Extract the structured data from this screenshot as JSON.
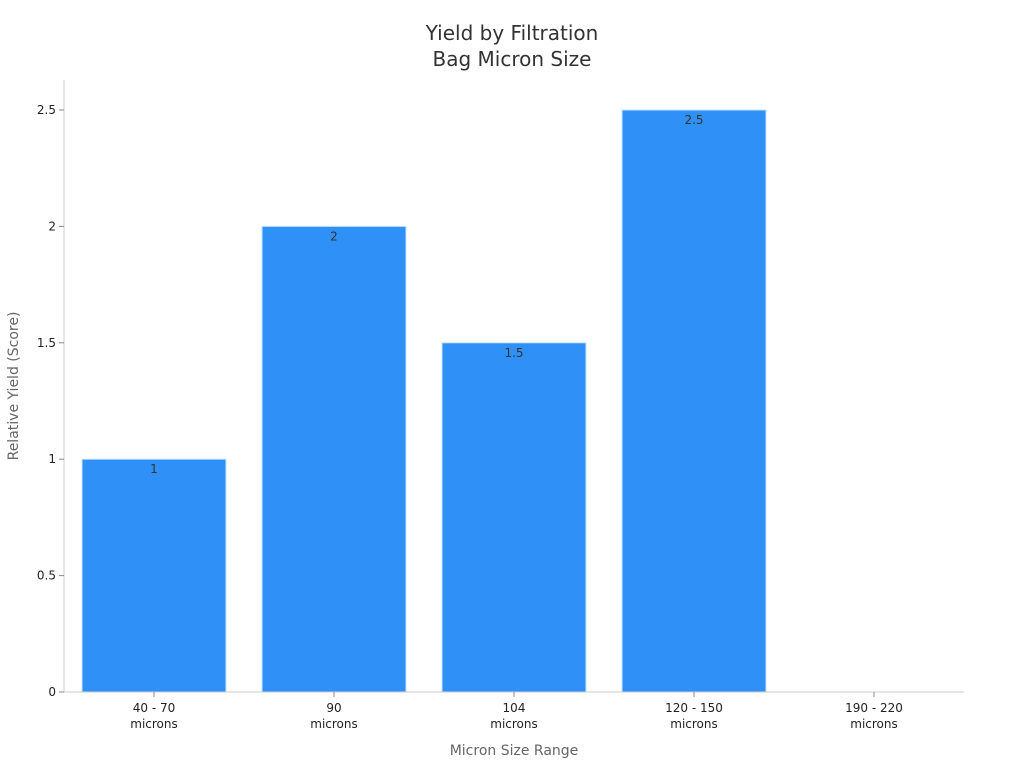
{
  "chart_data": {
    "type": "bar",
    "title_lines": [
      "Yield by Filtration",
      "Bag Micron Size"
    ],
    "xlabel": "Micron Size Range",
    "ylabel": "Relative Yield (Score)",
    "categories": [
      [
        "40 - 70",
        "microns"
      ],
      [
        "90",
        "microns"
      ],
      [
        "104",
        "microns"
      ],
      [
        "120 - 150",
        "microns"
      ],
      [
        "190 - 220",
        "microns"
      ]
    ],
    "values": [
      1,
      2,
      1.5,
      2.5,
      null
    ],
    "data_labels": [
      "1",
      "2",
      "1.5",
      "2.5",
      ""
    ],
    "ylim": [
      0,
      2.5
    ],
    "yticks": [
      0,
      0.5,
      1,
      1.5,
      2,
      2.5
    ],
    "ytick_labels": [
      "0",
      "0.5",
      "1",
      "1.5",
      "2",
      "2.5"
    ],
    "grid": false,
    "legend": "none",
    "bar_color": "#2f91f7",
    "bar_edge_color": "#c9e2fb",
    "axis_color": "#cccccc",
    "text_color": "#333333"
  }
}
